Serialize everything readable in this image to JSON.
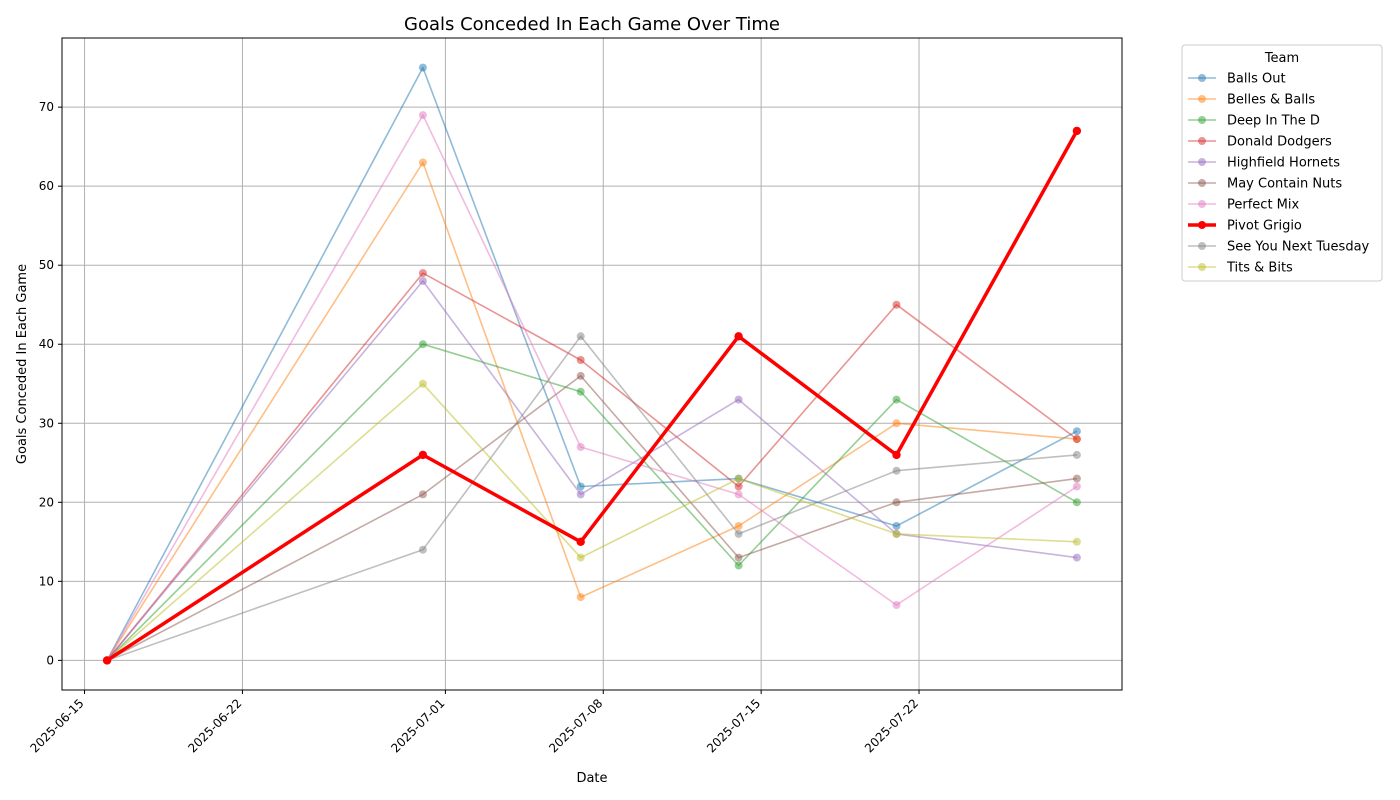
{
  "chart_data": {
    "type": "line",
    "title": "Goals Conceded In Each Game Over Time",
    "xlabel": "Date",
    "ylabel": "Goals Conceded In Each Game",
    "x_type": "date",
    "x": [
      "2025-06-16",
      "2025-06-30",
      "2025-07-07",
      "2025-07-14",
      "2025-07-21",
      "2025-07-29"
    ],
    "xlim": [
      "2025-06-14",
      "2025-07-31"
    ],
    "xticks": [
      "2025-06-15",
      "2025-06-22",
      "2025-07-01",
      "2025-07-08",
      "2025-07-15",
      "2025-07-22"
    ],
    "ylim": [
      -3.75,
      78.75
    ],
    "yticks": [
      0,
      10,
      20,
      30,
      40,
      50,
      60,
      70
    ],
    "grid": true,
    "legend": {
      "title": "Team",
      "placement": "outside-top-right"
    },
    "series": [
      {
        "name": "Balls Out",
        "color": "#1f77b4",
        "highlight": false,
        "values": [
          0,
          75,
          22,
          23,
          17,
          29
        ]
      },
      {
        "name": "Belles & Balls",
        "color": "#ff7f0e",
        "highlight": false,
        "values": [
          0,
          63,
          8,
          17,
          30,
          28
        ]
      },
      {
        "name": "Deep In The D",
        "color": "#2ca02c",
        "highlight": false,
        "values": [
          0,
          40,
          34,
          12,
          33,
          20
        ]
      },
      {
        "name": "Donald Dodgers",
        "color": "#d62728",
        "highlight": false,
        "values": [
          0,
          49,
          38,
          22,
          45,
          28
        ]
      },
      {
        "name": "Highfield Hornets",
        "color": "#9467bd",
        "highlight": false,
        "values": [
          0,
          48,
          21,
          33,
          16,
          13
        ]
      },
      {
        "name": "May Contain Nuts",
        "color": "#8c564b",
        "highlight": false,
        "values": [
          0,
          21,
          36,
          13,
          20,
          23
        ]
      },
      {
        "name": "Perfect Mix",
        "color": "#e377c2",
        "highlight": false,
        "values": [
          0,
          69,
          27,
          21,
          7,
          22
        ]
      },
      {
        "name": "Pivot Grigio",
        "color": "#ff0000",
        "highlight": true,
        "values": [
          0,
          26,
          15,
          41,
          26,
          67
        ]
      },
      {
        "name": "See You Next Tuesday",
        "color": "#7f7f7f",
        "highlight": false,
        "values": [
          0,
          14,
          41,
          16,
          24,
          26
        ]
      },
      {
        "name": "Tits & Bits",
        "color": "#bcbd22",
        "highlight": false,
        "values": [
          0,
          35,
          13,
          23,
          16,
          15
        ]
      }
    ]
  }
}
